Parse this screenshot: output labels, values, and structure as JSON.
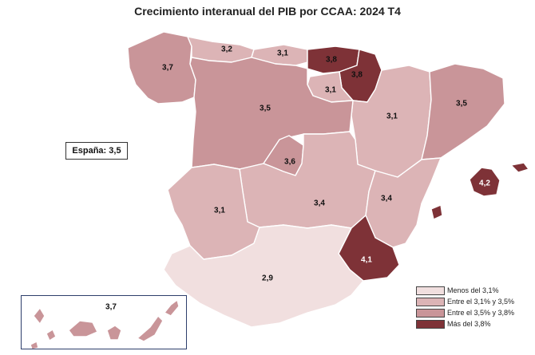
{
  "title": "Crecimiento interanual del PIB por CCAA: 2024 T4",
  "espana_label": "España: 3,5",
  "colors": {
    "lt31": "#f1dfdf",
    "31_35": "#dcb4b6",
    "35_38": "#c99599",
    "gt38": "#7e3237",
    "border": "#ffffff",
    "frame": "#2d3e6b"
  },
  "regions": [
    {
      "name": "Galicia",
      "value": "3,7"
    },
    {
      "name": "Asturias",
      "value": "3,2"
    },
    {
      "name": "Cantabria",
      "value": "3,1"
    },
    {
      "name": "País Vasco",
      "value": "3,8"
    },
    {
      "name": "Navarra",
      "value": "3,8"
    },
    {
      "name": "La Rioja",
      "value": "3,1"
    },
    {
      "name": "Aragón",
      "value": "3,1"
    },
    {
      "name": "Cataluña",
      "value": "3,5"
    },
    {
      "name": "Castilla y León",
      "value": "3,5"
    },
    {
      "name": "Madrid",
      "value": "3,6"
    },
    {
      "name": "Castilla-La Mancha",
      "value": "3,4"
    },
    {
      "name": "Extremadura",
      "value": "3,1"
    },
    {
      "name": "Comunitat Valenciana",
      "value": "3,4"
    },
    {
      "name": "Illes Balears",
      "value": "4,2"
    },
    {
      "name": "Región de Murcia",
      "value": "4,1"
    },
    {
      "name": "Andalucía",
      "value": "2,9"
    },
    {
      "name": "Canarias",
      "value": "3,7"
    }
  ],
  "legend": [
    {
      "label": "Menos del 3,1%",
      "color": "#f1dfdf"
    },
    {
      "label": "Entre el 3,1% y 3,5%",
      "color": "#dcb4b6"
    },
    {
      "label": "Entre el 3,5% y 3,8%",
      "color": "#c99599"
    },
    {
      "label": "Más del 3,8%",
      "color": "#7e3237"
    }
  ]
}
